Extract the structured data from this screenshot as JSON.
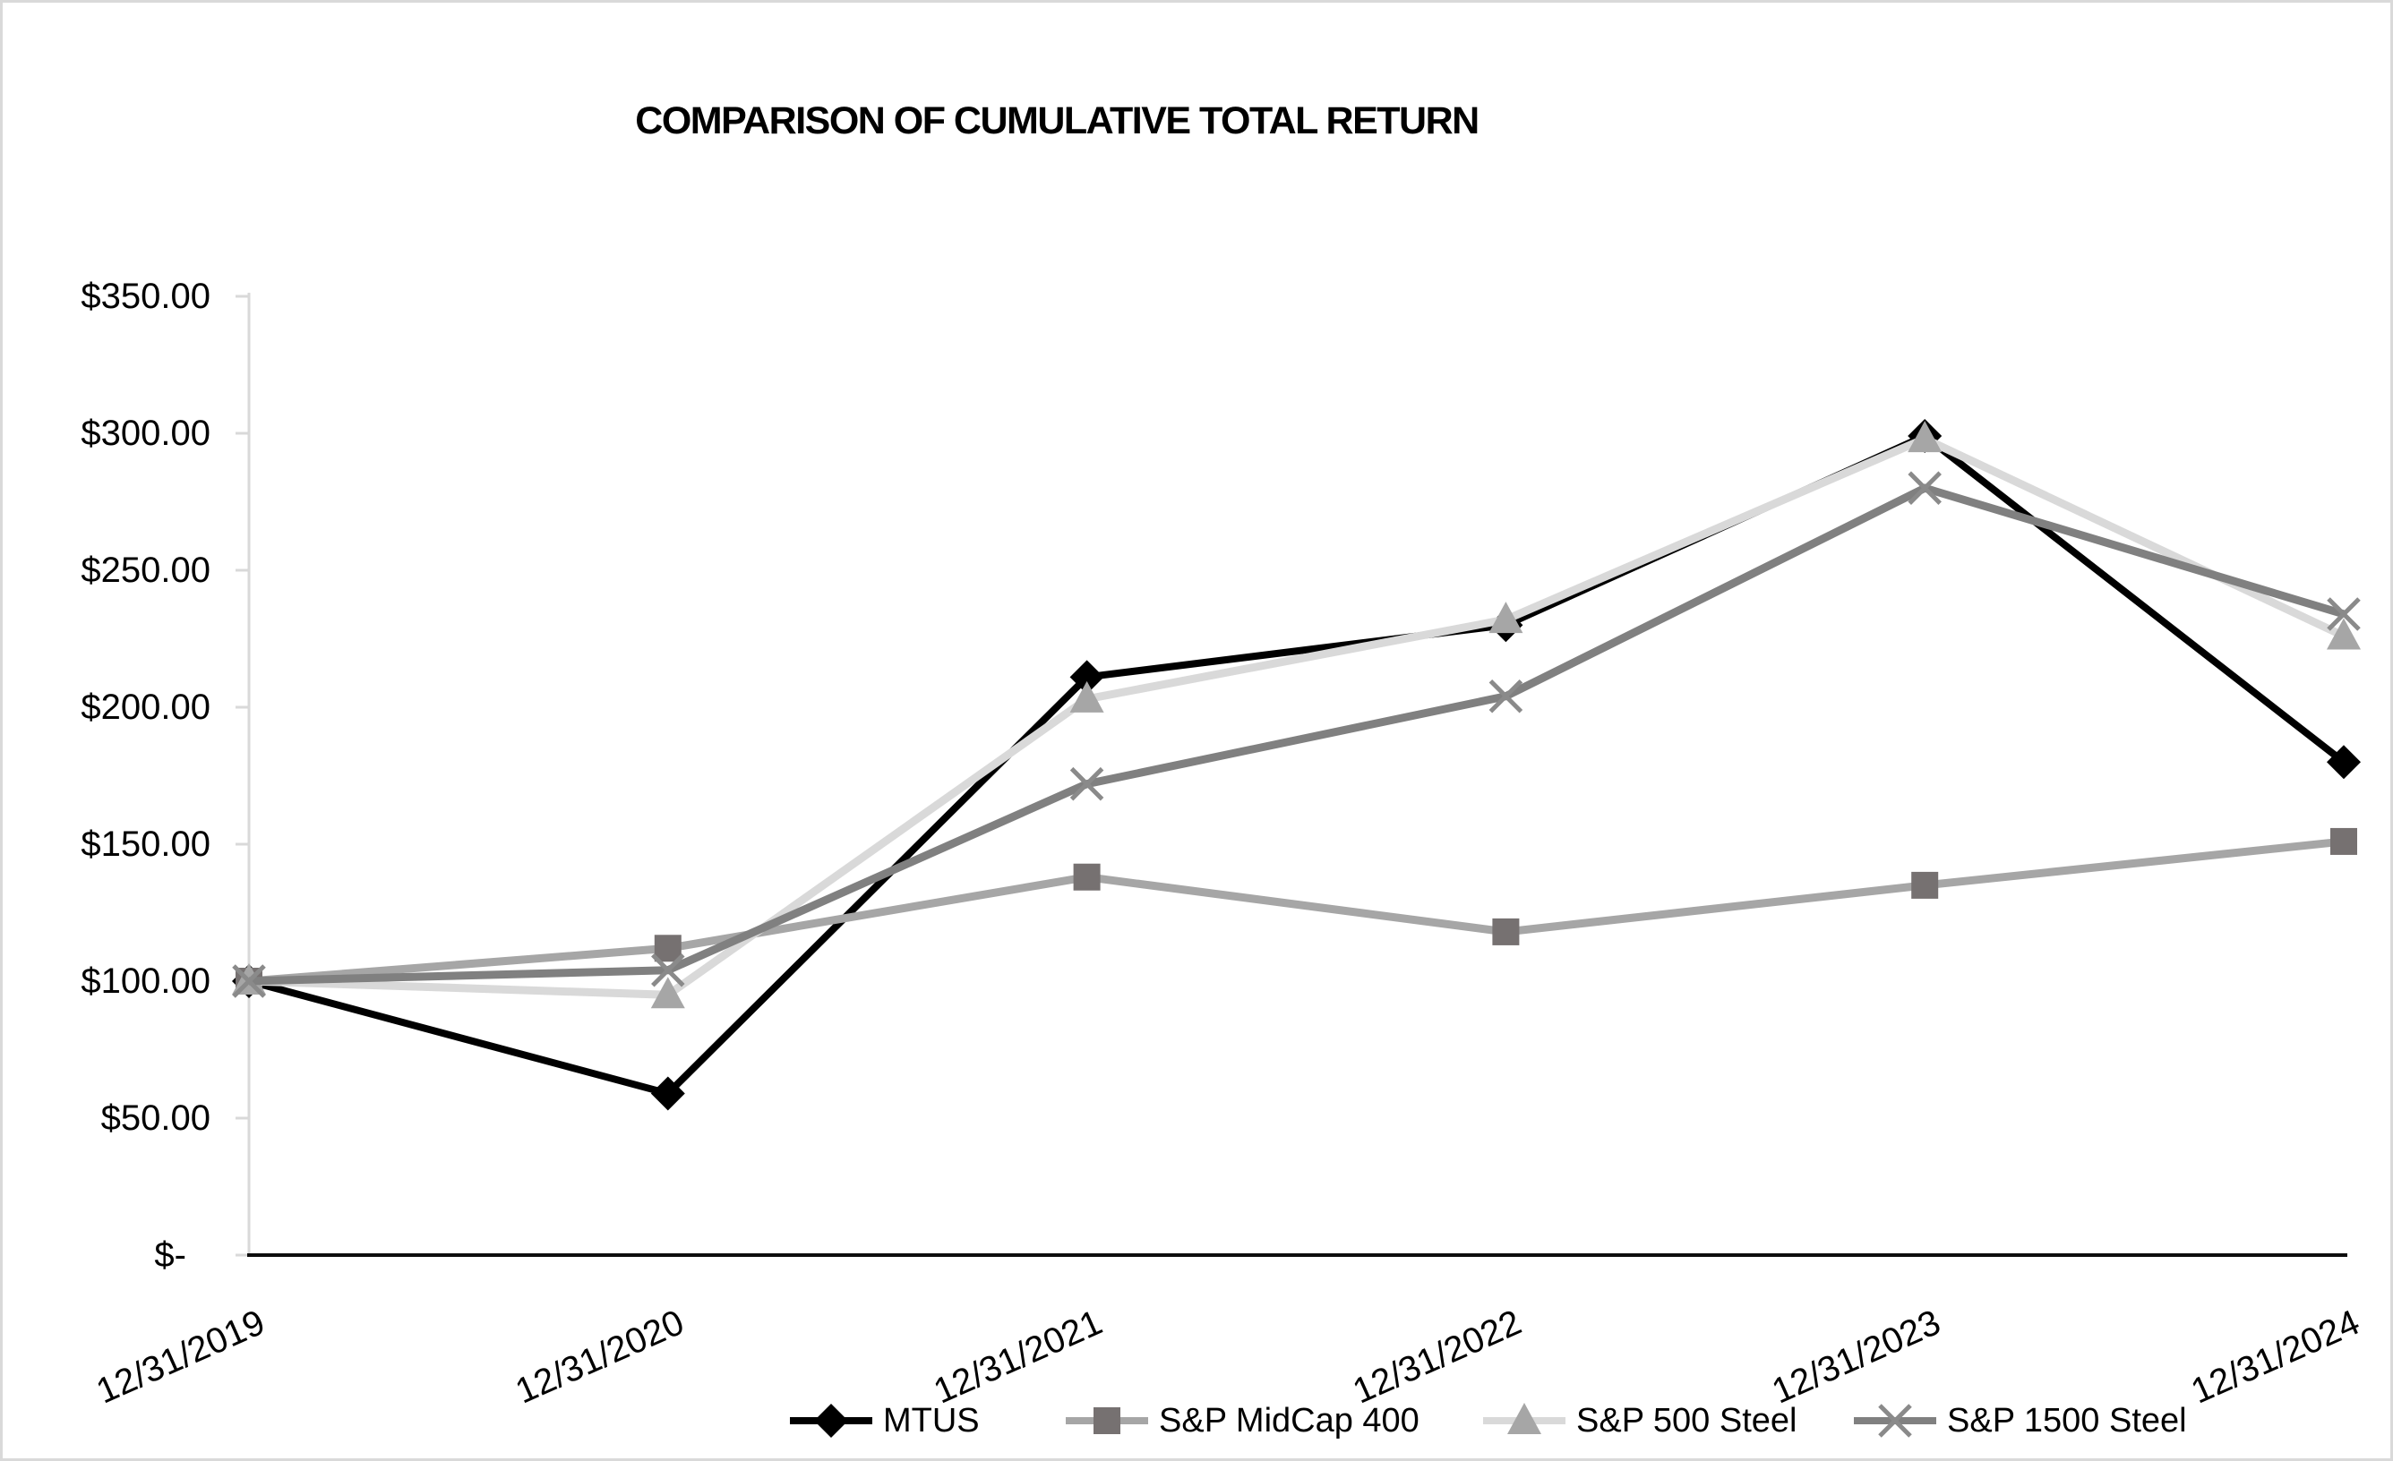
{
  "chart_data": {
    "type": "line",
    "title": "COMPARISON OF CUMULATIVE TOTAL RETURN",
    "categories": [
      "12/31/2019",
      "12/31/2020",
      "12/31/2021",
      "12/31/2022",
      "12/31/2023",
      "12/31/2024"
    ],
    "series": [
      {
        "name": "MTUS",
        "marker": "diamond",
        "line_color": "#000000",
        "marker_color": "#000000",
        "values": [
          100,
          59,
          211,
          230,
          299,
          180
        ]
      },
      {
        "name": "S&P MidCap 400",
        "marker": "square",
        "line_color": "#a6a6a6",
        "marker_color": "#767171",
        "values": [
          100,
          112,
          138,
          118,
          135,
          151
        ]
      },
      {
        "name": "S&P 500 Steel",
        "marker": "triangle",
        "line_color": "#d9d9d9",
        "marker_color": "#a6a6a6",
        "values": [
          100,
          95,
          203,
          232,
          298,
          226
        ]
      },
      {
        "name": "S&P 1500 Steel",
        "marker": "x",
        "line_color": "#808080",
        "marker_color": "#8a8a8a",
        "values": [
          100,
          104,
          172,
          204,
          280,
          234
        ]
      }
    ],
    "y_axis": {
      "min": 0,
      "max": 350,
      "tick_step": 50,
      "tick_labels": [
        "$350.00",
        "$300.00",
        "$250.00",
        "$200.00",
        "$150.00",
        "$100.00",
        "$50.00",
        "$-"
      ]
    },
    "x_axis_label_angle_deg": -24,
    "legend_position": "bottom",
    "grid": false,
    "ylim": [
      0,
      350
    ]
  },
  "colors": {
    "background": "#ffffff",
    "image_border": "#d9d9d9",
    "y_axis_line": "#d9d9d9",
    "y_tick": "#d9d9d9",
    "x_axis_line": "#0d0d0d",
    "text": "#000000"
  }
}
